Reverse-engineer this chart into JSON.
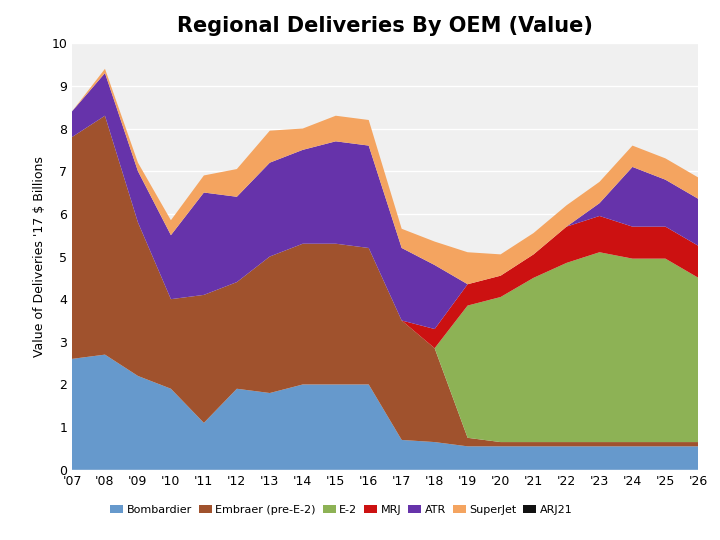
{
  "title": "Regional Deliveries By OEM (Value)",
  "ylabel": "Value of Deliveries '17 $ Billions",
  "years": [
    "'07",
    "'08",
    "'09",
    "'10",
    "'11",
    "'12",
    "'13",
    "'14",
    "'15",
    "'16",
    "'17",
    "'18",
    "'19",
    "'20",
    "'21",
    "'22",
    "'23",
    "'24",
    "'25",
    "'26"
  ],
  "year_vals": [
    2007,
    2008,
    2009,
    2010,
    2011,
    2012,
    2013,
    2014,
    2015,
    2016,
    2017,
    2018,
    2019,
    2020,
    2021,
    2022,
    2023,
    2024,
    2025,
    2026
  ],
  "series": {
    "Bombardier": [
      2.6,
      2.7,
      2.2,
      1.9,
      1.1,
      1.9,
      1.8,
      2.0,
      2.0,
      2.0,
      0.7,
      0.65,
      0.55,
      0.55,
      0.55,
      0.55,
      0.55,
      0.55,
      0.55,
      0.55
    ],
    "Embraer (pre-E-2)": [
      5.2,
      5.6,
      3.6,
      2.1,
      3.0,
      2.5,
      3.2,
      3.3,
      3.3,
      3.2,
      2.8,
      2.2,
      0.2,
      0.1,
      0.1,
      0.1,
      0.1,
      0.1,
      0.1,
      0.1
    ],
    "E-2": [
      0.0,
      0.0,
      0.0,
      0.0,
      0.0,
      0.0,
      0.0,
      0.0,
      0.0,
      0.0,
      0.0,
      0.0,
      3.1,
      3.4,
      3.85,
      4.2,
      4.45,
      4.3,
      4.3,
      3.85
    ],
    "MRJ": [
      0.0,
      0.0,
      0.0,
      0.0,
      0.0,
      0.0,
      0.0,
      0.0,
      0.0,
      0.0,
      0.0,
      0.45,
      0.5,
      0.5,
      0.55,
      0.85,
      0.85,
      0.75,
      0.75,
      0.75
    ],
    "ATR": [
      0.6,
      1.0,
      1.2,
      1.5,
      2.4,
      2.0,
      2.2,
      2.2,
      2.4,
      2.4,
      1.7,
      1.5,
      0.0,
      0.0,
      0.0,
      0.0,
      0.3,
      1.4,
      1.1,
      1.1
    ],
    "SuperJet": [
      0.0,
      0.1,
      0.2,
      0.35,
      0.4,
      0.65,
      0.75,
      0.5,
      0.6,
      0.6,
      0.45,
      0.55,
      0.75,
      0.5,
      0.5,
      0.5,
      0.5,
      0.5,
      0.5,
      0.5
    ],
    "ARJ21": [
      0.0,
      0.0,
      0.0,
      0.0,
      0.0,
      0.0,
      0.0,
      0.0,
      0.0,
      0.0,
      0.0,
      0.0,
      0.0,
      0.0,
      0.0,
      0.0,
      0.0,
      0.0,
      0.0,
      0.0
    ]
  },
  "colors": {
    "Bombardier": "#6699CC",
    "Embraer (pre-E-2)": "#A0522D",
    "E-2": "#8DB255",
    "MRJ": "#CC1111",
    "ATR": "#6633AA",
    "SuperJet": "#F4A460",
    "ARJ21": "#111111"
  },
  "ylim": [
    0,
    10
  ],
  "plot_bg": "#F0F0F0",
  "fig_bg": "#FFFFFF",
  "title_fontsize": 15,
  "label_fontsize": 9,
  "tick_fontsize": 9,
  "legend_fontsize": 8
}
